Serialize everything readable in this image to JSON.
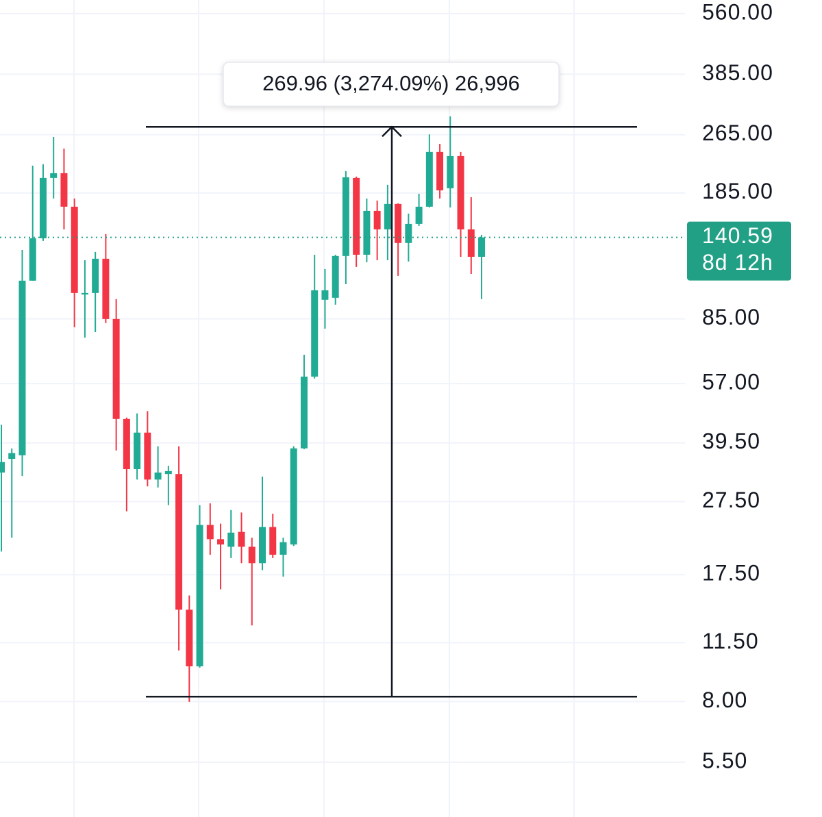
{
  "chart_data": {
    "type": "candlestick",
    "log_scale": true,
    "grid": true,
    "up_color": "#22ab94",
    "down_color": "#f23645",
    "ylim": [
      3.92,
      609
    ],
    "yticks": [
      {
        "value": 560,
        "label": "560.00"
      },
      {
        "value": 385,
        "label": "385.00"
      },
      {
        "value": 265,
        "label": "265.00"
      },
      {
        "value": 185,
        "label": "185.00"
      },
      {
        "value": 85,
        "label": "85.00"
      },
      {
        "value": 57,
        "label": "57.00"
      },
      {
        "value": 39.5,
        "label": "39.50"
      },
      {
        "value": 27.5,
        "label": "27.50"
      },
      {
        "value": 17.5,
        "label": "17.50"
      },
      {
        "value": 11.5,
        "label": "11.50"
      },
      {
        "value": 8,
        "label": "8.00"
      },
      {
        "value": 5.5,
        "label": "5.50"
      }
    ],
    "open": [
      32.9,
      35.8,
      36.6,
      107.6,
      139.8,
      202.9,
      209.0,
      169.9,
      98.8,
      99.7,
      123.2,
      84.9,
      45.8,
      33.6,
      42.1,
      31.5,
      32.6,
      32.6,
      14.1,
      9.94,
      23.8,
      21.8,
      20.8,
      22.8,
      20.8,
      18.8,
      23.5,
      19.8,
      21.1,
      38.2,
      59.5,
      95.6,
      96.8,
      125.3,
      202.9,
      126.3,
      165.6,
      147.7,
      172.8,
      135.8,
      152.8,
      169.9,
      238.3,
      190.4,
      232.3,
      147.7,
      124.7
    ],
    "high": [
      44.2,
      38.2,
      130.1,
      218.9,
      220.8,
      261.4,
      243.4,
      178.7,
      122.1,
      128.5,
      143.4,
      96.0,
      46.2,
      47.4,
      48.1,
      38.7,
      34.3,
      38.7,
      15.4,
      26.9,
      27.2,
      24.0,
      26.1,
      25.7,
      22.0,
      32.1,
      25.5,
      22.0,
      38.7,
      68.1,
      126.3,
      115.6,
      126.3,
      211.7,
      204.6,
      178.7,
      176.5,
      194.5,
      173.5,
      162.8,
      184.1,
      265.6,
      250.6,
      296.9,
      238.3,
      180.2,
      142.8
    ],
    "low": [
      20.2,
      22.0,
      32.2,
      107.6,
      137.5,
      178.7,
      147.7,
      80.7,
      75.7,
      78.3,
      82.8,
      37.7,
      25.9,
      31.5,
      30.2,
      30.0,
      26.9,
      10.96,
      7.98,
      9.86,
      19.8,
      16.0,
      19.4,
      18.8,
      12.8,
      18.0,
      19.4,
      17.3,
      20.9,
      38.0,
      58.8,
      80.0,
      92.8,
      105.3,
      117.1,
      120.6,
      122.1,
      122.1,
      110.8,
      121.1,
      150.9,
      169.2,
      178.7,
      169.2,
      124.7,
      112.2,
      96.0
    ],
    "close": [
      35.1,
      37.1,
      107.6,
      139.8,
      202.9,
      209.0,
      169.9,
      99.7,
      99.7,
      123.2,
      84.9,
      45.8,
      33.6,
      42.1,
      31.5,
      32.9,
      33.2,
      14.1,
      9.94,
      23.8,
      21.8,
      21.1,
      22.7,
      20.8,
      18.8,
      23.5,
      19.8,
      21.4,
      38.2,
      59.5,
      101.4,
      101.4,
      125.3,
      203.8,
      126.3,
      165.6,
      147.7,
      172.8,
      135.8,
      152.8,
      169.9,
      238.3,
      188.0,
      232.3,
      147.7,
      124.7,
      140.59
    ],
    "last_price": 140.59,
    "last_price_color": "#22a085",
    "countdown": "8d 12h",
    "measure": {
      "from": 8.245,
      "to": 278.2,
      "label": "269.96 (3,274.09%) 26,996"
    }
  }
}
